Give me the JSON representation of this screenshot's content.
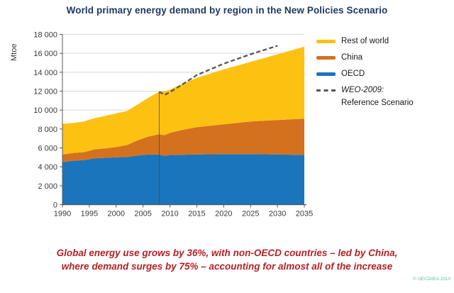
{
  "header": {
    "title": "World primary energy demand by region in the New Policies Scenario"
  },
  "footer": {
    "caption_line1": "Global energy use grows by 36%, with non-OECD countries – led by China,",
    "caption_line2": "where demand surges by 75% – accounting for almost all of the increase",
    "copyright": "© OECD/IEA 2010"
  },
  "colors": {
    "title": "#203864",
    "caption": "#b42126",
    "copyright": "#5bb79e",
    "grid": "#d8d8d8",
    "axis": "#58595b",
    "tick_label": "#3a3a3a",
    "divider": "#4a4a4a"
  },
  "chart_data": {
    "type": "area",
    "stacked": true,
    "title": "World primary energy demand by region in the New Policies Scenario",
    "ylabel": "Mtoe",
    "xlabel": "",
    "ylim": [
      0,
      18000
    ],
    "ytick_step": 2000,
    "xlim": [
      1990,
      2035
    ],
    "xticks": [
      1990,
      1995,
      2000,
      2005,
      2010,
      2015,
      2020,
      2025,
      2030,
      2035
    ],
    "grid": "horizontal",
    "legend_position": "right",
    "x": [
      1990,
      1992,
      1994,
      1996,
      1998,
      2000,
      2002,
      2004,
      2006,
      2008,
      2009,
      2010,
      2012,
      2015,
      2020,
      2025,
      2030,
      2035
    ],
    "series": [
      {
        "name": "OECD",
        "color": "#1b75bc",
        "values": [
          4500,
          4650,
          4700,
          4900,
          4950,
          5000,
          5050,
          5200,
          5300,
          5300,
          5150,
          5250,
          5270,
          5300,
          5350,
          5350,
          5300,
          5250
        ]
      },
      {
        "name": "China",
        "color": "#d4711f",
        "values": [
          800,
          820,
          850,
          950,
          1000,
          1100,
          1250,
          1600,
          1900,
          2150,
          2200,
          2350,
          2600,
          2900,
          3150,
          3450,
          3650,
          3850
        ]
      },
      {
        "name": "Rest of world",
        "color": "#fdc112",
        "values": [
          3250,
          3180,
          3250,
          3300,
          3450,
          3550,
          3600,
          3800,
          4100,
          4500,
          4650,
          4550,
          4830,
          5200,
          5800,
          6300,
          6950,
          7600
        ]
      }
    ],
    "reference_line": {
      "name": "WEO-2009: Reference Scenario",
      "color": "#55565a",
      "dashed": true,
      "x": [
        2008,
        2009,
        2010,
        2012,
        2015,
        2020,
        2025,
        2030
      ],
      "values": [
        11950,
        11600,
        11900,
        12600,
        13700,
        14900,
        15900,
        16800
      ]
    },
    "divider_x": 2008,
    "legend": {
      "items": [
        {
          "label": "Rest of world",
          "swatch": "area",
          "color": "#fdc112"
        },
        {
          "label": "China",
          "swatch": "area",
          "color": "#d4711f"
        },
        {
          "label": "OECD",
          "swatch": "area",
          "color": "#1b75bc"
        },
        {
          "label": "WEO-2009:",
          "label2": "Reference Scenario",
          "swatch": "dashed",
          "color": "#55565a",
          "italic": true
        }
      ]
    }
  }
}
